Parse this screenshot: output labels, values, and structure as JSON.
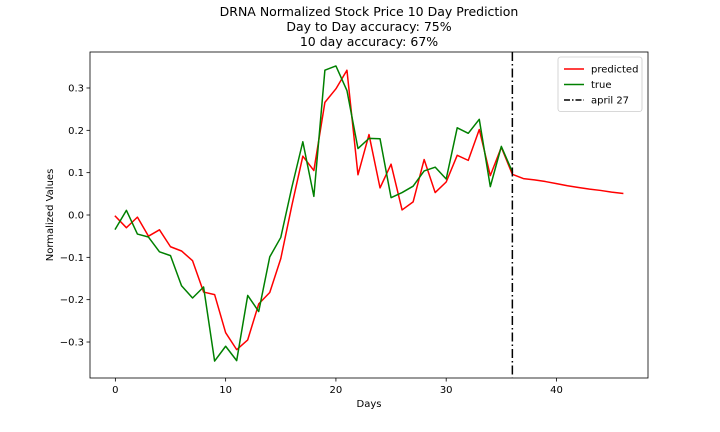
{
  "chart_data": {
    "type": "line",
    "title": "DRNA Normalized Stock Price 10 Day Prediction",
    "subtitle_lines": [
      "Day to Day accuracy: 75%",
      "10 day accuracy: 67%"
    ],
    "xlabel": "Days",
    "ylabel": "Normalized Values",
    "xlim": [
      -2.3,
      48.3
    ],
    "ylim": [
      -0.385,
      0.385
    ],
    "xticks": [
      0,
      10,
      20,
      30,
      40
    ],
    "yticks": [
      -0.3,
      -0.2,
      -0.1,
      0.0,
      0.1,
      0.2,
      0.3
    ],
    "ytick_labels": [
      "−0.3",
      "−0.2",
      "−0.1",
      "0.0",
      "0.1",
      "0.2",
      "0.3"
    ],
    "grid": false,
    "legend_position": "top-right",
    "series": [
      {
        "name": "predicted",
        "color": "#ff0000",
        "x": [
          0,
          1,
          2,
          3,
          4,
          5,
          6,
          7,
          8,
          9,
          10,
          11,
          12,
          13,
          14,
          15,
          16,
          17,
          18,
          19,
          20,
          21,
          22,
          23,
          24,
          25,
          26,
          27,
          28,
          29,
          30,
          31,
          32,
          33,
          34,
          35,
          36,
          37,
          38,
          39,
          40,
          41,
          42,
          43,
          44,
          45,
          46
        ],
        "values": [
          -0.003,
          -0.03,
          -0.005,
          -0.05,
          -0.035,
          -0.075,
          -0.085,
          -0.108,
          -0.182,
          -0.188,
          -0.278,
          -0.318,
          -0.295,
          -0.21,
          -0.183,
          -0.103,
          0.022,
          0.139,
          0.105,
          0.266,
          0.298,
          0.342,
          0.095,
          0.19,
          0.064,
          0.12,
          0.012,
          0.031,
          0.131,
          0.053,
          0.078,
          0.141,
          0.129,
          0.202,
          0.093,
          0.16,
          0.096,
          0.086,
          0.083,
          0.079,
          0.074,
          0.069,
          0.065,
          0.061,
          0.058,
          0.054,
          0.051
        ]
      },
      {
        "name": "true",
        "color": "#008000",
        "x": [
          0,
          1,
          2,
          3,
          4,
          5,
          6,
          7,
          8,
          9,
          10,
          11,
          12,
          13,
          14,
          15,
          16,
          17,
          18,
          19,
          20,
          21,
          22,
          23,
          24,
          25,
          26,
          27,
          28,
          29,
          30,
          31,
          32,
          33,
          34,
          35,
          36
        ],
        "values": [
          -0.033,
          0.011,
          -0.045,
          -0.052,
          -0.087,
          -0.096,
          -0.167,
          -0.196,
          -0.17,
          -0.345,
          -0.31,
          -0.344,
          -0.19,
          -0.228,
          -0.099,
          -0.053,
          0.065,
          0.173,
          0.044,
          0.342,
          0.352,
          0.294,
          0.157,
          0.181,
          0.18,
          0.041,
          0.053,
          0.068,
          0.104,
          0.113,
          0.085,
          0.206,
          0.193,
          0.226,
          0.067,
          0.162,
          0.102
        ]
      }
    ],
    "vline": {
      "name": "april 27",
      "x": 36,
      "color": "#000000",
      "style": "dash-dot"
    }
  }
}
